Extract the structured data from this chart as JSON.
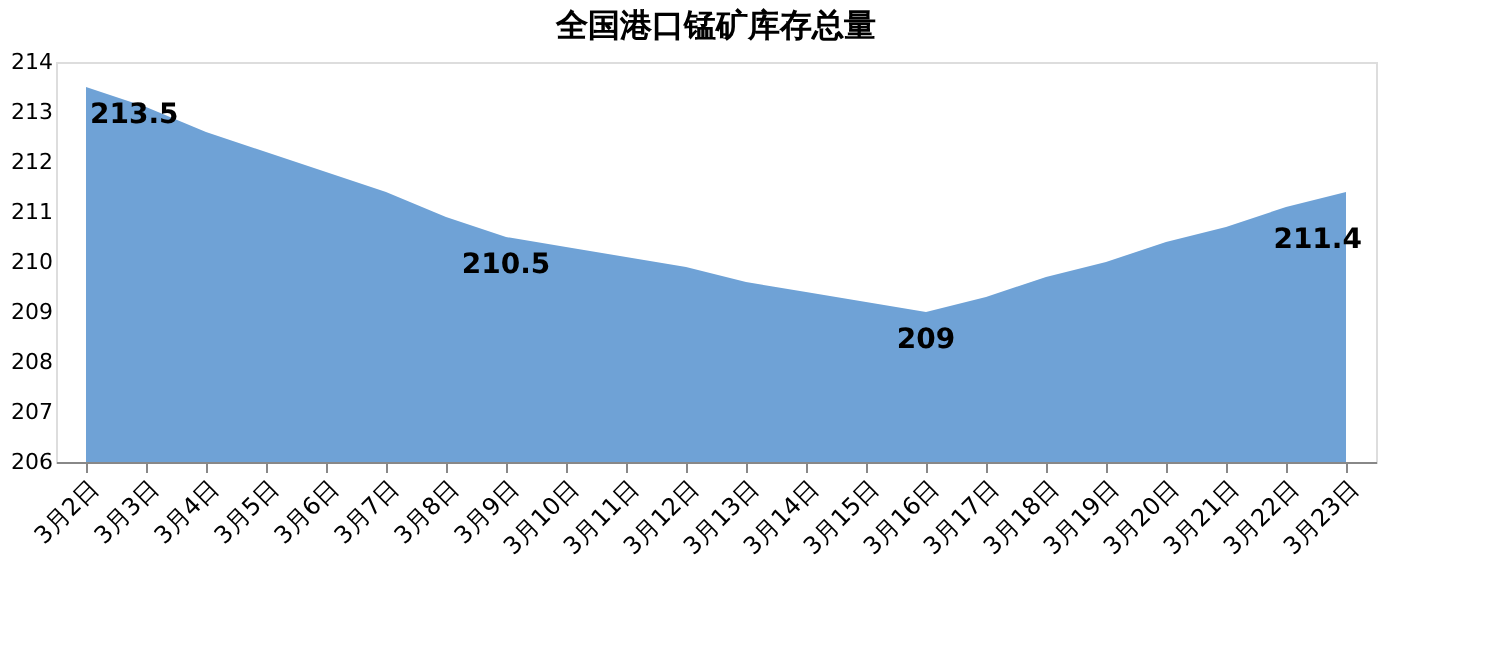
{
  "chart_data": {
    "type": "area",
    "title": "全国港口锰矿库存总量",
    "categories": [
      "3月2日",
      "3月3日",
      "3月4日",
      "3月5日",
      "3月6日",
      "3月7日",
      "3月8日",
      "3月9日",
      "3月10日",
      "3月11日",
      "3月12日",
      "3月13日",
      "3月14日",
      "3月15日",
      "3月16日",
      "3月17日",
      "3月18日",
      "3月19日",
      "3月20日",
      "3月21日",
      "3月22日",
      "3月23日"
    ],
    "values": [
      213.5,
      213.1,
      212.6,
      212.2,
      211.8,
      211.4,
      210.9,
      210.5,
      210.3,
      210.1,
      209.9,
      209.6,
      209.4,
      209.2,
      209,
      209.3,
      209.7,
      210.0,
      210.4,
      210.7,
      211.1,
      211.4
    ],
    "value_labels": [
      "213.5",
      null,
      null,
      null,
      null,
      null,
      null,
      "210.5",
      null,
      null,
      null,
      null,
      null,
      null,
      "209",
      null,
      null,
      null,
      null,
      null,
      null,
      "211.4"
    ],
    "color": "#6fa2d6",
    "ylim": [
      206,
      214
    ],
    "yticks": [
      206,
      207,
      208,
      209,
      210,
      211,
      212,
      213,
      214
    ],
    "grid": false
  }
}
